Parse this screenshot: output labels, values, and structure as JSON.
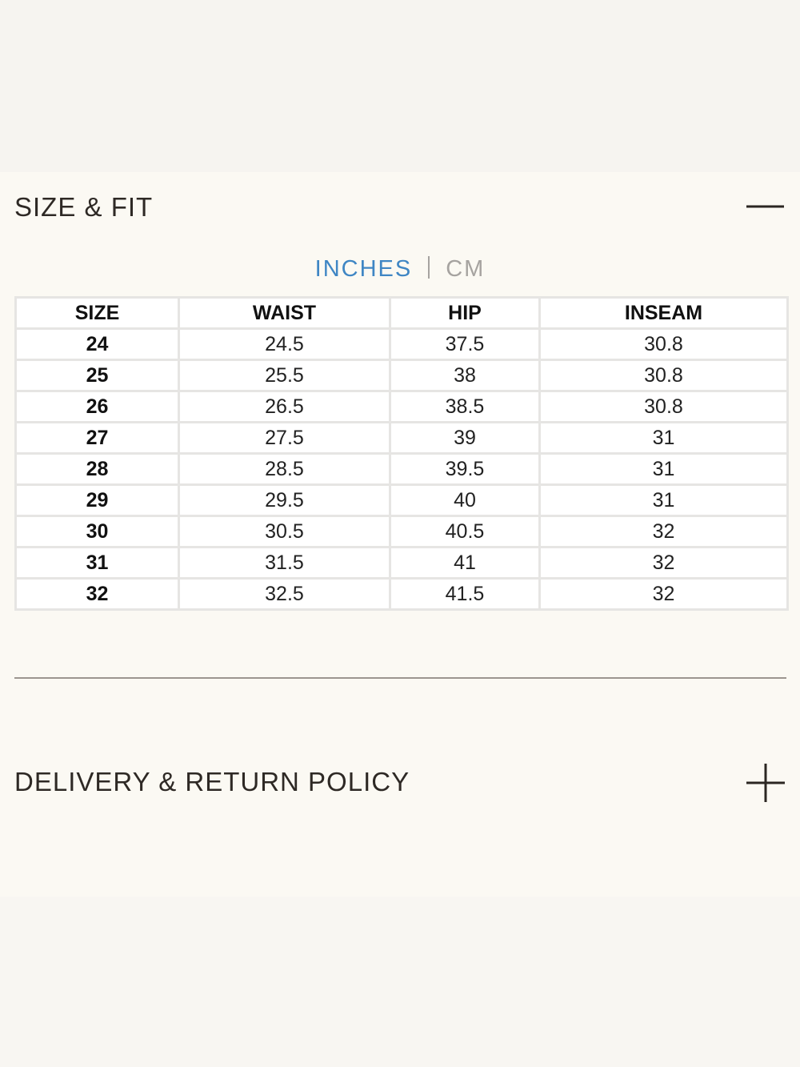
{
  "size_fit": {
    "title": "SIZE & FIT",
    "units": {
      "active": "INCHES",
      "inactive": "CM"
    },
    "table": {
      "header": [
        "SIZE",
        "WAIST",
        "HIP",
        "INSEAM"
      ],
      "rows": [
        [
          "24",
          "24.5",
          "37.5",
          "30.8"
        ],
        [
          "25",
          "25.5",
          "38",
          "30.8"
        ],
        [
          "26",
          "26.5",
          "38.5",
          "30.8"
        ],
        [
          "27",
          "27.5",
          "39",
          "31"
        ],
        [
          "28",
          "28.5",
          "39.5",
          "31"
        ],
        [
          "29",
          "29.5",
          "40",
          "31"
        ],
        [
          "30",
          "30.5",
          "40.5",
          "32"
        ],
        [
          "31",
          "31.5",
          "41",
          "32"
        ],
        [
          "32",
          "32.5",
          "41.5",
          "32"
        ]
      ]
    }
  },
  "delivery": {
    "title": "DELIVERY & RETURN POLICY"
  }
}
